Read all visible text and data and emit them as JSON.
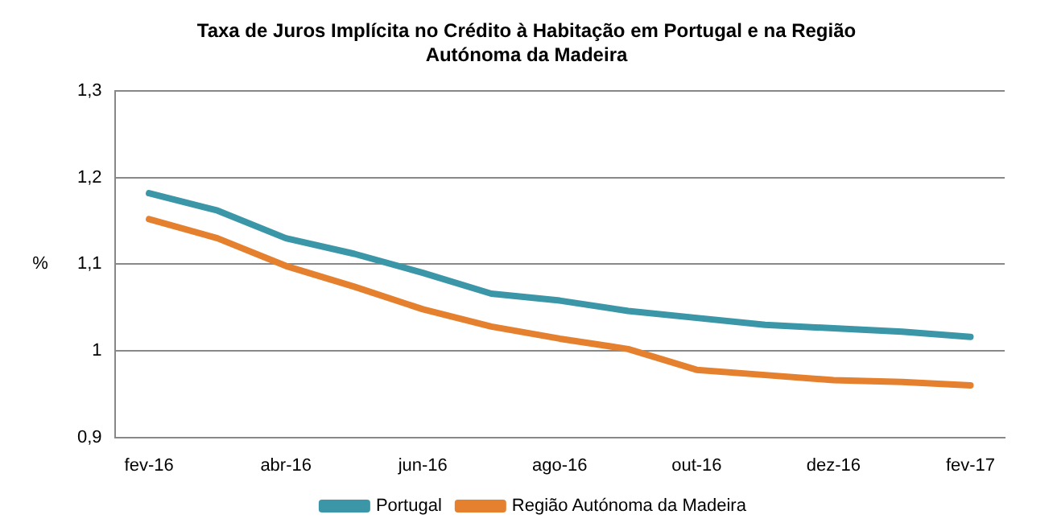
{
  "chart_data": {
    "type": "line",
    "title": "Taxa de Juros Implícita no Crédito à Habitação em Portugal e na Região Autónoma da Madeira",
    "ylabel": "%",
    "categories": [
      "fev-16",
      null,
      "abr-16",
      null,
      "jun-16",
      null,
      "ago-16",
      null,
      "out-16",
      null,
      "dez-16",
      null,
      "fev-17"
    ],
    "series": [
      {
        "name": "Portugal",
        "color": "#3b97a8",
        "values": [
          1.182,
          1.162,
          1.13,
          1.112,
          1.09,
          1.066,
          1.058,
          1.046,
          1.038,
          1.03,
          1.026,
          1.022,
          1.016
        ]
      },
      {
        "name": "Região Autónoma da Madeira",
        "color": "#e5802f",
        "values": [
          1.152,
          1.13,
          1.098,
          1.074,
          1.048,
          1.028,
          1.014,
          1.002,
          0.978,
          0.972,
          0.966,
          0.964,
          0.96
        ]
      }
    ],
    "ylim": [
      0.9,
      1.3
    ],
    "yticks": [
      {
        "value": 0.9,
        "label": "0,9"
      },
      1,
      {
        "value": 1.1,
        "label": "1,1"
      },
      {
        "value": 1.2,
        "label": "1,2"
      },
      {
        "value": 1.3,
        "label": "1,3"
      }
    ],
    "grid": "y",
    "legend": "bottom",
    "marker": "none",
    "line_style": "solid"
  }
}
